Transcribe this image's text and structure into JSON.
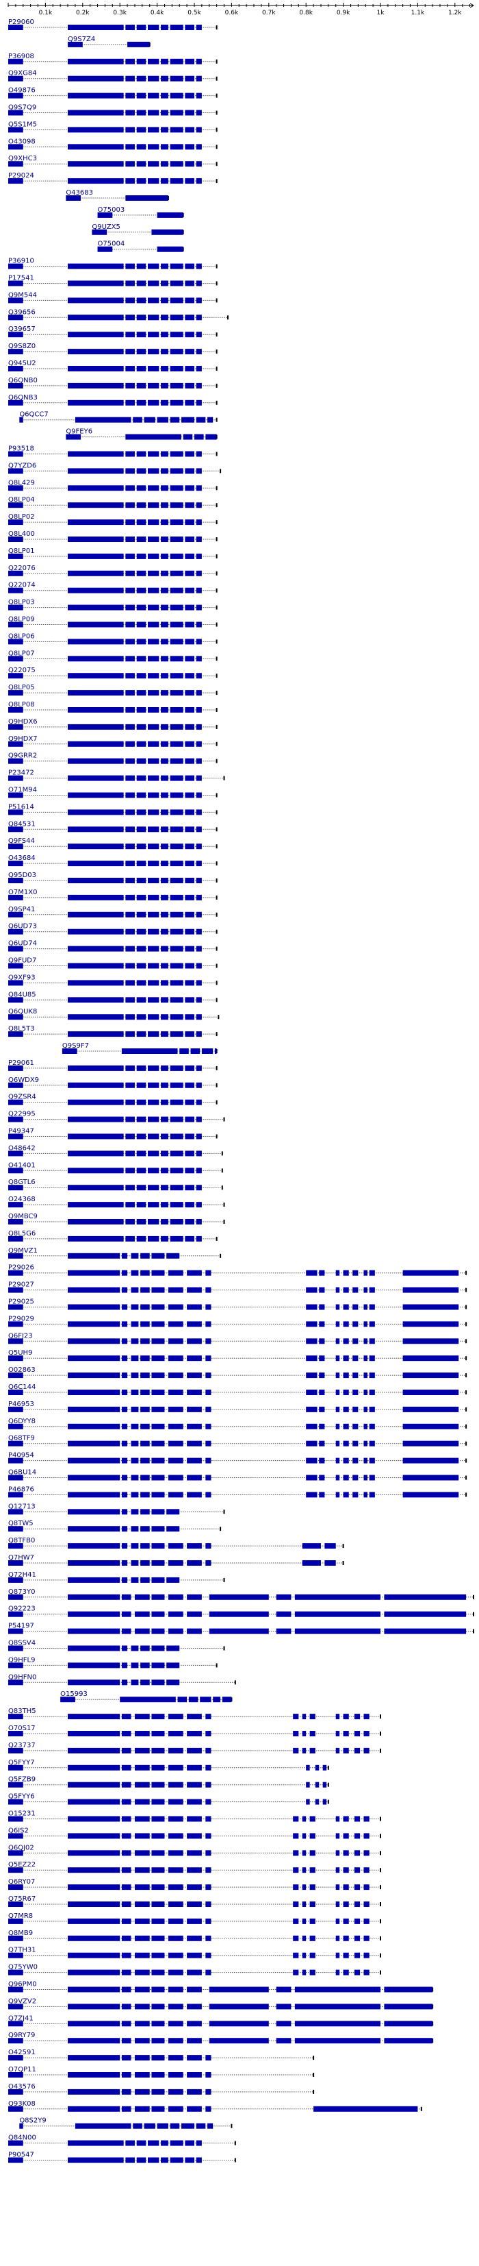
{
  "axis": {
    "ticks": [
      "0.1k",
      "0.2k",
      "0.3k",
      "0.4k",
      "0.5k",
      "0.6k",
      "0.7k",
      "0.8k",
      "0.9k",
      "1k",
      "1.1k",
      "1.2k"
    ],
    "max": 1250
  },
  "colors": {
    "block": "#0000aa",
    "line": "#000000",
    "label": "#000080"
  },
  "rows": [
    {
      "label": "P29060",
      "s": 0,
      "e": 560,
      "pat": "a"
    },
    {
      "label": "Q9S7Z4",
      "s": 160,
      "e": 380,
      "pat": "a"
    },
    {
      "label": "P36908",
      "s": 0,
      "e": 560,
      "pat": "a"
    },
    {
      "label": "Q9XG84",
      "s": 0,
      "e": 560,
      "pat": "a"
    },
    {
      "label": "O49876",
      "s": 0,
      "e": 560,
      "pat": "a"
    },
    {
      "label": "Q9S7Q9",
      "s": 0,
      "e": 560,
      "pat": "a"
    },
    {
      "label": "Q5S1M5",
      "s": 0,
      "e": 560,
      "pat": "a"
    },
    {
      "label": "O43098",
      "s": 0,
      "e": 560,
      "pat": "a"
    },
    {
      "label": "Q9XHC3",
      "s": 0,
      "e": 560,
      "pat": "a"
    },
    {
      "label": "P29024",
      "s": 0,
      "e": 560,
      "pat": "a"
    },
    {
      "label": "O43683",
      "s": 155,
      "e": 430,
      "pat": "a"
    },
    {
      "label": "O75003",
      "s": 240,
      "e": 470,
      "pat": "a"
    },
    {
      "label": "Q9UZX5",
      "s": 225,
      "e": 470,
      "pat": "a"
    },
    {
      "label": "O75004",
      "s": 240,
      "e": 470,
      "pat": "a"
    },
    {
      "label": "P36910",
      "s": 0,
      "e": 560,
      "pat": "a"
    },
    {
      "label": "P17541",
      "s": 0,
      "e": 560,
      "pat": "a"
    },
    {
      "label": "Q9M544",
      "s": 0,
      "e": 560,
      "pat": "a"
    },
    {
      "label": "Q39656",
      "s": 0,
      "e": 590,
      "pat": "a"
    },
    {
      "label": "Q39657",
      "s": 0,
      "e": 560,
      "pat": "a"
    },
    {
      "label": "Q9S8Z0",
      "s": 0,
      "e": 560,
      "pat": "a"
    },
    {
      "label": "Q945U2",
      "s": 0,
      "e": 560,
      "pat": "a"
    },
    {
      "label": "Q6QNB0",
      "s": 0,
      "e": 560,
      "pat": "a"
    },
    {
      "label": "Q6QNB3",
      "s": 0,
      "e": 560,
      "pat": "a"
    },
    {
      "label": "Q6QCC7",
      "s": 30,
      "e": 560,
      "pat": "b"
    },
    {
      "label": "Q9FEY6",
      "s": 155,
      "e": 560,
      "pat": "a"
    },
    {
      "label": "P93518",
      "s": 0,
      "e": 560,
      "pat": "a"
    },
    {
      "label": "Q7YZD6",
      "s": 0,
      "e": 570,
      "pat": "a"
    },
    {
      "label": "Q8L429",
      "s": 0,
      "e": 560,
      "pat": "a"
    },
    {
      "label": "Q8LP04",
      "s": 0,
      "e": 560,
      "pat": "a"
    },
    {
      "label": "Q8LP02",
      "s": 0,
      "e": 560,
      "pat": "a"
    },
    {
      "label": "Q8L400",
      "s": 0,
      "e": 560,
      "pat": "a"
    },
    {
      "label": "Q8LP01",
      "s": 0,
      "e": 560,
      "pat": "a"
    },
    {
      "label": "Q22076",
      "s": 0,
      "e": 560,
      "pat": "a"
    },
    {
      "label": "Q22074",
      "s": 0,
      "e": 560,
      "pat": "a"
    },
    {
      "label": "Q8LP03",
      "s": 0,
      "e": 560,
      "pat": "a"
    },
    {
      "label": "Q8LP09",
      "s": 0,
      "e": 560,
      "pat": "a"
    },
    {
      "label": "Q8LP06",
      "s": 0,
      "e": 560,
      "pat": "a"
    },
    {
      "label": "Q8LP07",
      "s": 0,
      "e": 560,
      "pat": "a"
    },
    {
      "label": "Q22075",
      "s": 0,
      "e": 560,
      "pat": "a"
    },
    {
      "label": "Q8LP05",
      "s": 0,
      "e": 560,
      "pat": "a"
    },
    {
      "label": "Q8LP08",
      "s": 0,
      "e": 560,
      "pat": "a"
    },
    {
      "label": "Q9HDX6",
      "s": 0,
      "e": 560,
      "pat": "a"
    },
    {
      "label": "Q9HDX7",
      "s": 0,
      "e": 560,
      "pat": "a"
    },
    {
      "label": "Q9GRR2",
      "s": 0,
      "e": 560,
      "pat": "a"
    },
    {
      "label": "P23472",
      "s": 0,
      "e": 580,
      "pat": "a"
    },
    {
      "label": "O71M94",
      "s": 0,
      "e": 560,
      "pat": "a"
    },
    {
      "label": "P51614",
      "s": 0,
      "e": 560,
      "pat": "a"
    },
    {
      "label": "Q84531",
      "s": 0,
      "e": 560,
      "pat": "a"
    },
    {
      "label": "Q9FS44",
      "s": 0,
      "e": 560,
      "pat": "a"
    },
    {
      "label": "O43684",
      "s": 0,
      "e": 560,
      "pat": "a"
    },
    {
      "label": "Q95D03",
      "s": 0,
      "e": 560,
      "pat": "a"
    },
    {
      "label": "O7M1X0",
      "s": 0,
      "e": 560,
      "pat": "a"
    },
    {
      "label": "Q9SP41",
      "s": 0,
      "e": 560,
      "pat": "a"
    },
    {
      "label": "Q6UD73",
      "s": 0,
      "e": 560,
      "pat": "a"
    },
    {
      "label": "Q6UD74",
      "s": 0,
      "e": 560,
      "pat": "a"
    },
    {
      "label": "Q9FUD7",
      "s": 0,
      "e": 560,
      "pat": "a"
    },
    {
      "label": "Q9XF93",
      "s": 0,
      "e": 560,
      "pat": "a"
    },
    {
      "label": "Q84U85",
      "s": 0,
      "e": 560,
      "pat": "a"
    },
    {
      "label": "Q6QUK8",
      "s": 0,
      "e": 565,
      "pat": "a"
    },
    {
      "label": "Q8L5T3",
      "s": 0,
      "e": 560,
      "pat": "a"
    },
    {
      "label": "Q9S9F7",
      "s": 145,
      "e": 560,
      "pat": "a"
    },
    {
      "label": "P29061",
      "s": 0,
      "e": 560,
      "pat": "a"
    },
    {
      "label": "Q6WDX9",
      "s": 0,
      "e": 560,
      "pat": "a"
    },
    {
      "label": "Q9ZSR4",
      "s": 0,
      "e": 560,
      "pat": "a"
    },
    {
      "label": "Q22995",
      "s": 0,
      "e": 580,
      "pat": "a"
    },
    {
      "label": "P49347",
      "s": 0,
      "e": 560,
      "pat": "a"
    },
    {
      "label": "O48642",
      "s": 0,
      "e": 575,
      "pat": "a"
    },
    {
      "label": "O41401",
      "s": 0,
      "e": 575,
      "pat": "a"
    },
    {
      "label": "Q8GTL6",
      "s": 0,
      "e": 575,
      "pat": "a"
    },
    {
      "label": "O24368",
      "s": 0,
      "e": 580,
      "pat": "a"
    },
    {
      "label": "Q9MBC9",
      "s": 0,
      "e": 580,
      "pat": "a"
    },
    {
      "label": "Q8L5G6",
      "s": 0,
      "e": 560,
      "pat": "a"
    },
    {
      "label": "Q9MVZ1",
      "s": 0,
      "e": 570,
      "pat": "c"
    },
    {
      "label": "P29026",
      "s": 0,
      "e": 1230,
      "pat": "e"
    },
    {
      "label": "P29027",
      "s": 0,
      "e": 1230,
      "pat": "e"
    },
    {
      "label": "P29025",
      "s": 0,
      "e": 1230,
      "pat": "e"
    },
    {
      "label": "P29029",
      "s": 0,
      "e": 1230,
      "pat": "e"
    },
    {
      "label": "Q6FJ23",
      "s": 0,
      "e": 1230,
      "pat": "e"
    },
    {
      "label": "Q5UH9",
      "s": 0,
      "e": 1230,
      "pat": "e"
    },
    {
      "label": "O02863",
      "s": 0,
      "e": 1230,
      "pat": "e"
    },
    {
      "label": "Q6C144",
      "s": 0,
      "e": 1230,
      "pat": "e"
    },
    {
      "label": "P46953",
      "s": 0,
      "e": 1230,
      "pat": "e"
    },
    {
      "label": "Q6DYY8",
      "s": 0,
      "e": 1230,
      "pat": "e"
    },
    {
      "label": "Q68TF9",
      "s": 0,
      "e": 1230,
      "pat": "e"
    },
    {
      "label": "P40954",
      "s": 0,
      "e": 1230,
      "pat": "e"
    },
    {
      "label": "Q6BU14",
      "s": 0,
      "e": 1230,
      "pat": "e"
    },
    {
      "label": "P46876",
      "s": 0,
      "e": 1230,
      "pat": "e"
    },
    {
      "label": "Q12713",
      "s": 0,
      "e": 580,
      "pat": "c"
    },
    {
      "label": "Q8TW5",
      "s": 0,
      "e": 570,
      "pat": "c"
    },
    {
      "label": "Q8TFB0",
      "s": 0,
      "e": 900,
      "pat": "f"
    },
    {
      "label": "Q7HW7",
      "s": 0,
      "e": 900,
      "pat": "f"
    },
    {
      "label": "Q72H41",
      "s": 0,
      "e": 580,
      "pat": "c"
    },
    {
      "label": "Q873Y0",
      "s": 0,
      "e": 1250,
      "pat": "g"
    },
    {
      "label": "Q92223",
      "s": 0,
      "e": 1250,
      "pat": "g"
    },
    {
      "label": "P54197",
      "s": 0,
      "e": 1250,
      "pat": "g"
    },
    {
      "label": "Q8SSV4",
      "s": 0,
      "e": 580,
      "pat": "c"
    },
    {
      "label": "Q9HFL9",
      "s": 0,
      "e": 560,
      "pat": "c"
    },
    {
      "label": "Q9HFN0",
      "s": 0,
      "e": 610,
      "pat": "c"
    },
    {
      "label": "O15993",
      "s": 140,
      "e": 600,
      "pat": "a"
    },
    {
      "label": "Q83TH5",
      "s": 0,
      "e": 1000,
      "pat": "h"
    },
    {
      "label": "O70S17",
      "s": 0,
      "e": 1000,
      "pat": "h"
    },
    {
      "label": "Q23737",
      "s": 0,
      "e": 1000,
      "pat": "h"
    },
    {
      "label": "Q5FYY7",
      "s": 0,
      "e": 860,
      "pat": "i"
    },
    {
      "label": "Q5FZB9",
      "s": 0,
      "e": 860,
      "pat": "i"
    },
    {
      "label": "Q5FYY6",
      "s": 0,
      "e": 860,
      "pat": "i"
    },
    {
      "label": "O15231",
      "s": 0,
      "e": 1000,
      "pat": "h"
    },
    {
      "label": "Q6IS2",
      "s": 0,
      "e": 1000,
      "pat": "h"
    },
    {
      "label": "Q6QJ02",
      "s": 0,
      "e": 1000,
      "pat": "h"
    },
    {
      "label": "Q5EZ22",
      "s": 0,
      "e": 1000,
      "pat": "h"
    },
    {
      "label": "Q6RY07",
      "s": 0,
      "e": 1000,
      "pat": "h"
    },
    {
      "label": "Q75R67",
      "s": 0,
      "e": 1000,
      "pat": "h"
    },
    {
      "label": "Q7MR8",
      "s": 0,
      "e": 1000,
      "pat": "h"
    },
    {
      "label": "Q8MB9",
      "s": 0,
      "e": 1000,
      "pat": "h"
    },
    {
      "label": "Q7TH31",
      "s": 0,
      "e": 1000,
      "pat": "h"
    },
    {
      "label": "Q75YW0",
      "s": 0,
      "e": 1000,
      "pat": "h"
    },
    {
      "label": "Q96PM0",
      "s": 0,
      "e": 1140,
      "pat": "g"
    },
    {
      "label": "Q9VZV2",
      "s": 0,
      "e": 1140,
      "pat": "g"
    },
    {
      "label": "Q7ZJ41",
      "s": 0,
      "e": 1140,
      "pat": "g"
    },
    {
      "label": "Q9RY79",
      "s": 0,
      "e": 1140,
      "pat": "g"
    },
    {
      "label": "O42591",
      "s": 0,
      "e": 820,
      "pat": "j"
    },
    {
      "label": "O7QP11",
      "s": 0,
      "e": 820,
      "pat": "j"
    },
    {
      "label": "O43576",
      "s": 0,
      "e": 820,
      "pat": "j"
    },
    {
      "label": "Q93K08",
      "s": 0,
      "e": 1110,
      "pat": "k"
    },
    {
      "label": "Q8S2Y9",
      "s": 30,
      "e": 600,
      "pat": "b"
    },
    {
      "label": "Q84N00",
      "s": 0,
      "e": 610,
      "pat": "a"
    },
    {
      "label": "P90547",
      "s": 0,
      "e": 610,
      "pat": "a"
    }
  ]
}
